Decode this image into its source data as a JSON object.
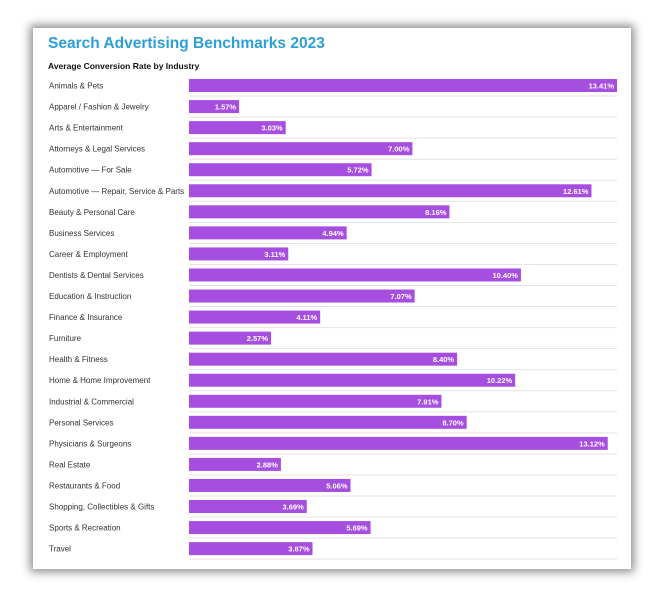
{
  "chart_data": {
    "type": "bar",
    "orientation": "horizontal",
    "title": "Search Advertising Benchmarks 2023",
    "subtitle": "Average Conversion Rate by Industry",
    "bar_color": "#a64ee0",
    "title_color": "#2d9fd8",
    "value_suffix": "%",
    "xlim": [
      0,
      13.41
    ],
    "grid": false,
    "categories": [
      "Animals & Pets",
      "Apparel / Fashion & Jewelry",
      "Arts & Entertainment",
      "Attorneys & Legal Services",
      "Automotive — For Sale",
      "Automotive — Repair, Service & Parts",
      "Beauty & Personal Care",
      "Business Services",
      "Career & Employment",
      "Dentists & Dental Services",
      "Education & Instruction",
      "Finance & Insurance",
      "Furniture",
      "Health & Fitness",
      "Home & Home Improvement",
      "Industrial & Commercial",
      "Personal Services",
      "Physicians & Surgeons",
      "Real Estate",
      "Restaurants & Food",
      "Shopping, Collectibles & Gifts",
      "Sports & Recreation",
      "Travel"
    ],
    "values": [
      13.41,
      1.57,
      3.03,
      7.0,
      5.72,
      12.61,
      8.16,
      4.94,
      3.11,
      10.4,
      7.07,
      4.11,
      2.57,
      8.4,
      10.22,
      7.91,
      8.7,
      13.12,
      2.88,
      5.06,
      3.69,
      5.69,
      3.87
    ],
    "value_labels": [
      "13.41%",
      "1.57%",
      "3.03%",
      "7.00%",
      "5.72%",
      "12.61%",
      "8.16%",
      "4.94%",
      "3.11%",
      "10.40%",
      "7.07%",
      "4.11%",
      "2.57%",
      "8.40%",
      "10.22%",
      "7.91%",
      "8.70%",
      "13.12%",
      "2.88%",
      "5.06%",
      "3.69%",
      "5.69%",
      "3.87%"
    ]
  }
}
